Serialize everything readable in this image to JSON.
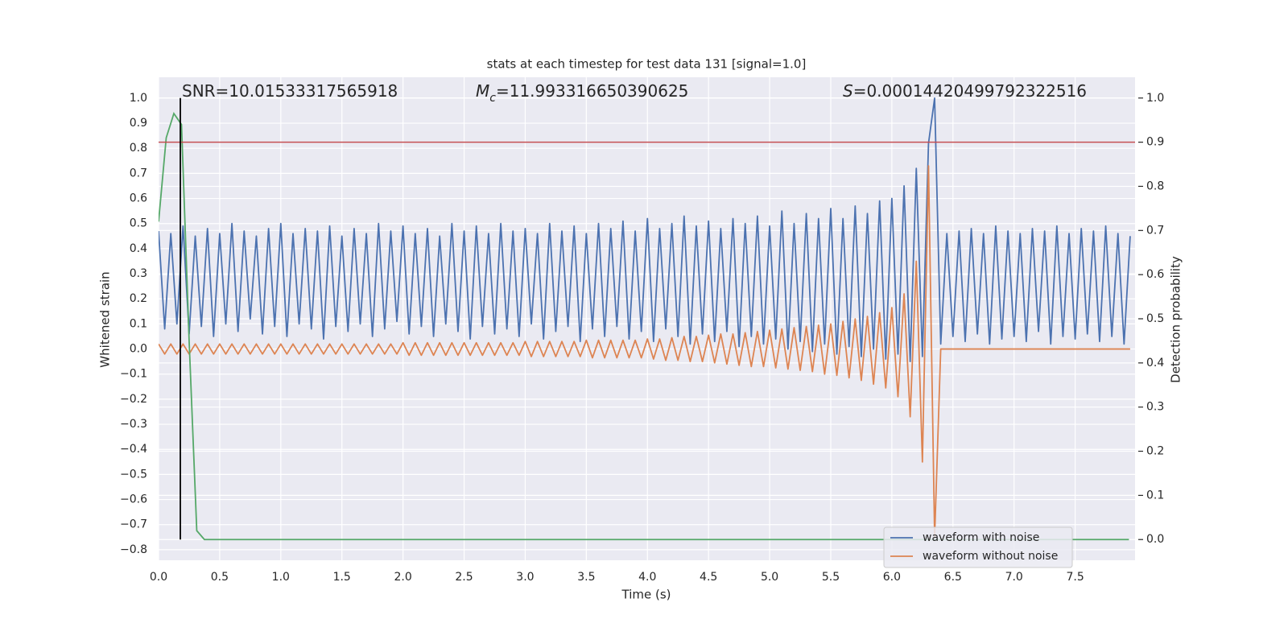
{
  "chart_data": {
    "type": "line",
    "title": "stats at each timestep for test data 131 [signal=1.0]",
    "x_label": "Time (s)",
    "y_label": "Whitened strain",
    "y2_label": "Detection probability",
    "annotations": [
      {
        "text": "SNR=10.01533317565918"
      },
      {
        "symbol": "M",
        "subscript": "c",
        "text": "=11.993316650390625"
      },
      {
        "symbol": "S",
        "text": "=0.00014420499792322516"
      }
    ],
    "xlim": [
      0,
      7.99
    ],
    "ylim": [
      -0.842,
      1.083
    ],
    "y2lim": [
      -0.047,
      1.047
    ],
    "xticks": [
      {
        "value": 0,
        "label": "0.0"
      },
      0.5,
      {
        "value": 1,
        "label": "1.0"
      },
      1.5,
      {
        "value": 2,
        "label": "2.0"
      },
      2.5,
      {
        "value": 3,
        "label": "3.0"
      },
      3.5,
      {
        "value": 4,
        "label": "4.0"
      },
      4.5,
      {
        "value": 5,
        "label": "5.0"
      },
      5.5,
      {
        "value": 6,
        "label": "6.0"
      },
      6.5,
      {
        "value": 7,
        "label": "7.0"
      },
      7.5
    ],
    "yticks": [
      {
        "value": -0.8,
        "label": "−0.8"
      },
      {
        "value": -0.7,
        "label": "−0.7"
      },
      {
        "value": -0.6,
        "label": "−0.6"
      },
      {
        "value": -0.5,
        "label": "−0.5"
      },
      {
        "value": -0.4,
        "label": "−0.4"
      },
      {
        "value": -0.3,
        "label": "−0.3"
      },
      {
        "value": -0.2,
        "label": "−0.2"
      },
      {
        "value": -0.1,
        "label": "−0.1"
      },
      {
        "value": 0,
        "label": "0.0"
      },
      0.1,
      0.2,
      0.3,
      0.4,
      0.5,
      0.6,
      0.7,
      0.8,
      0.9,
      {
        "value": 1,
        "label": "1.0"
      }
    ],
    "y2ticks": [
      {
        "value": 0,
        "label": "0.0"
      },
      0.1,
      0.2,
      0.3,
      0.4,
      0.5,
      0.6,
      0.7,
      0.8,
      0.9,
      {
        "value": 1,
        "label": "1.0"
      }
    ],
    "grid": true,
    "legend": "lower right",
    "x": [
      0,
      0.05,
      0.1,
      0.15,
      0.2,
      0.25,
      0.3,
      0.35,
      0.4,
      0.45,
      0.5,
      0.55,
      0.6,
      0.65,
      0.7,
      0.75,
      0.8,
      0.85,
      0.9,
      0.95,
      1,
      1.05,
      1.1,
      1.15,
      1.2,
      1.25,
      1.3,
      1.35,
      1.4,
      1.45,
      1.5,
      1.55,
      1.6,
      1.65,
      1.7,
      1.75,
      1.8,
      1.85,
      1.9,
      1.95,
      2,
      2.05,
      2.1,
      2.15,
      2.2,
      2.25,
      2.3,
      2.35,
      2.4,
      2.45,
      2.5,
      2.55,
      2.6,
      2.65,
      2.7,
      2.75,
      2.8,
      2.85,
      2.9,
      2.95,
      3,
      3.05,
      3.1,
      3.15,
      3.2,
      3.25,
      3.3,
      3.35,
      3.4,
      3.45,
      3.5,
      3.55,
      3.6,
      3.65,
      3.7,
      3.75,
      3.8,
      3.85,
      3.9,
      3.95,
      4,
      4.05,
      4.1,
      4.15,
      4.2,
      4.25,
      4.3,
      4.35,
      4.4,
      4.45,
      4.5,
      4.55,
      4.6,
      4.65,
      4.7,
      4.75,
      4.8,
      4.85,
      4.9,
      4.95,
      5,
      5.05,
      5.1,
      5.15,
      5.2,
      5.25,
      5.3,
      5.35,
      5.4,
      5.45,
      5.5,
      5.55,
      5.6,
      5.65,
      5.7,
      5.75,
      5.8,
      5.85,
      5.9,
      5.95,
      6,
      6.05,
      6.1,
      6.15,
      6.2,
      6.25,
      6.3,
      6.35,
      6.4,
      6.45,
      6.5,
      6.55,
      6.6,
      6.65,
      6.7,
      6.75,
      6.8,
      6.85,
      6.9,
      6.95,
      7,
      7.05,
      7.1,
      7.15,
      7.2,
      7.25,
      7.3,
      7.35,
      7.4,
      7.45,
      7.5,
      7.55,
      7.6,
      7.65,
      7.7,
      7.75,
      7.8,
      7.85,
      7.9,
      7.95
    ],
    "series": [
      {
        "name": "waveform with noise",
        "color": "#4c72b0",
        "values": [
          0.47,
          0.08,
          0.46,
          0.1,
          0.49,
          0.06,
          0.45,
          0.09,
          0.48,
          0.05,
          0.46,
          0.1,
          0.5,
          0.07,
          0.47,
          0.12,
          0.45,
          0.06,
          0.48,
          0.09,
          0.5,
          0.05,
          0.46,
          0.1,
          0.48,
          0.08,
          0.47,
          0.04,
          0.49,
          0.09,
          0.45,
          0.07,
          0.48,
          0.1,
          0.46,
          0.05,
          0.5,
          0.08,
          0.47,
          0.11,
          0.49,
          0.06,
          0.46,
          0.09,
          0.48,
          0.05,
          0.45,
          0.1,
          0.5,
          0.07,
          0.47,
          0.04,
          0.49,
          0.09,
          0.46,
          0.06,
          0.5,
          0.08,
          0.47,
          0.05,
          0.48,
          0.1,
          0.46,
          0.04,
          0.5,
          0.07,
          0.47,
          0.09,
          0.49,
          0.03,
          0.46,
          0.08,
          0.5,
          0.05,
          0.48,
          0.09,
          0.51,
          0.04,
          0.47,
          0.07,
          0.52,
          0.03,
          0.48,
          0.08,
          0.5,
          0.05,
          0.53,
          0.02,
          0.49,
          0.06,
          0.51,
          0.03,
          0.48,
          0.07,
          0.52,
          0.01,
          0.5,
          0.05,
          0.53,
          0.02,
          0.49,
          0.04,
          0.55,
          0.0,
          0.5,
          0.03,
          0.54,
          -0.01,
          0.52,
          0.02,
          0.56,
          -0.02,
          0.52,
          0.01,
          0.57,
          -0.03,
          0.54,
          0.0,
          0.59,
          -0.04,
          0.6,
          -0.02,
          0.65,
          -0.05,
          0.72,
          -0.03,
          0.82,
          1.0,
          0.02,
          0.46,
          0.05,
          0.47,
          0.03,
          0.48,
          0.06,
          0.46,
          0.02,
          0.49,
          0.04,
          0.47,
          0.05,
          0.46,
          0.03,
          0.48,
          0.07,
          0.47,
          0.02,
          0.49,
          0.05,
          0.46,
          0.04,
          0.48,
          0.06,
          0.47,
          0.03,
          0.49,
          0.05,
          0.46,
          0.02,
          0.45
        ]
      },
      {
        "name": "waveform without noise",
        "color": "#dd8452",
        "values": [
          0.02,
          -0.02,
          0.02,
          -0.02,
          0.02,
          -0.02,
          0.02,
          -0.02,
          0.02,
          -0.02,
          0.02,
          -0.02,
          0.02,
          -0.02,
          0.02,
          -0.02,
          0.02,
          -0.02,
          0.02,
          -0.02,
          0.02,
          -0.02,
          0.02,
          -0.02,
          0.02,
          -0.02,
          0.02,
          -0.02,
          0.02,
          -0.02,
          0.02,
          -0.02,
          0.02,
          -0.02,
          0.02,
          -0.02,
          0.02,
          -0.02,
          0.02,
          -0.02,
          0.025,
          -0.025,
          0.025,
          -0.025,
          0.025,
          -0.025,
          0.025,
          -0.025,
          0.025,
          -0.025,
          0.025,
          -0.025,
          0.025,
          -0.025,
          0.025,
          -0.025,
          0.025,
          -0.025,
          0.025,
          -0.025,
          0.03,
          -0.03,
          0.03,
          -0.03,
          0.03,
          -0.03,
          0.03,
          -0.03,
          0.03,
          -0.03,
          0.035,
          -0.035,
          0.035,
          -0.035,
          0.035,
          -0.035,
          0.035,
          -0.035,
          0.035,
          -0.035,
          0.04,
          -0.04,
          0.04,
          -0.045,
          0.045,
          -0.045,
          0.05,
          -0.05,
          0.05,
          -0.05,
          0.055,
          -0.055,
          0.06,
          -0.06,
          0.06,
          -0.065,
          0.065,
          -0.07,
          0.07,
          -0.07,
          0.075,
          -0.075,
          0.08,
          -0.08,
          0.085,
          -0.085,
          0.09,
          -0.09,
          0.095,
          -0.1,
          0.1,
          -0.105,
          0.11,
          -0.115,
          0.12,
          -0.125,
          0.13,
          -0.14,
          0.145,
          -0.155,
          0.165,
          -0.19,
          0.22,
          -0.27,
          0.35,
          -0.45,
          0.73,
          -0.75,
          0.0,
          0.0,
          0,
          0,
          0,
          0,
          0,
          0,
          0,
          0,
          0,
          0,
          0,
          0,
          0,
          0,
          0,
          0,
          0,
          0,
          0,
          0,
          0,
          0,
          0,
          0,
          0,
          0,
          0,
          0,
          0,
          0
        ]
      }
    ],
    "probability": {
      "color": "#55a868",
      "axis": "y2",
      "x": [
        0,
        0.0625,
        0.125,
        0.1875,
        0.25,
        0.3125,
        0.375,
        7.94
      ],
      "values": [
        0.72,
        0.91,
        0.965,
        0.94,
        0.45,
        0.02,
        0,
        0
      ]
    },
    "threshold": {
      "value": 0.9,
      "axis": "y2",
      "color": "#c44e52"
    },
    "marker_line": {
      "x": 0.178,
      "ymin": 0,
      "ymax": 1,
      "axis": "y2",
      "color": "#000000"
    }
  }
}
